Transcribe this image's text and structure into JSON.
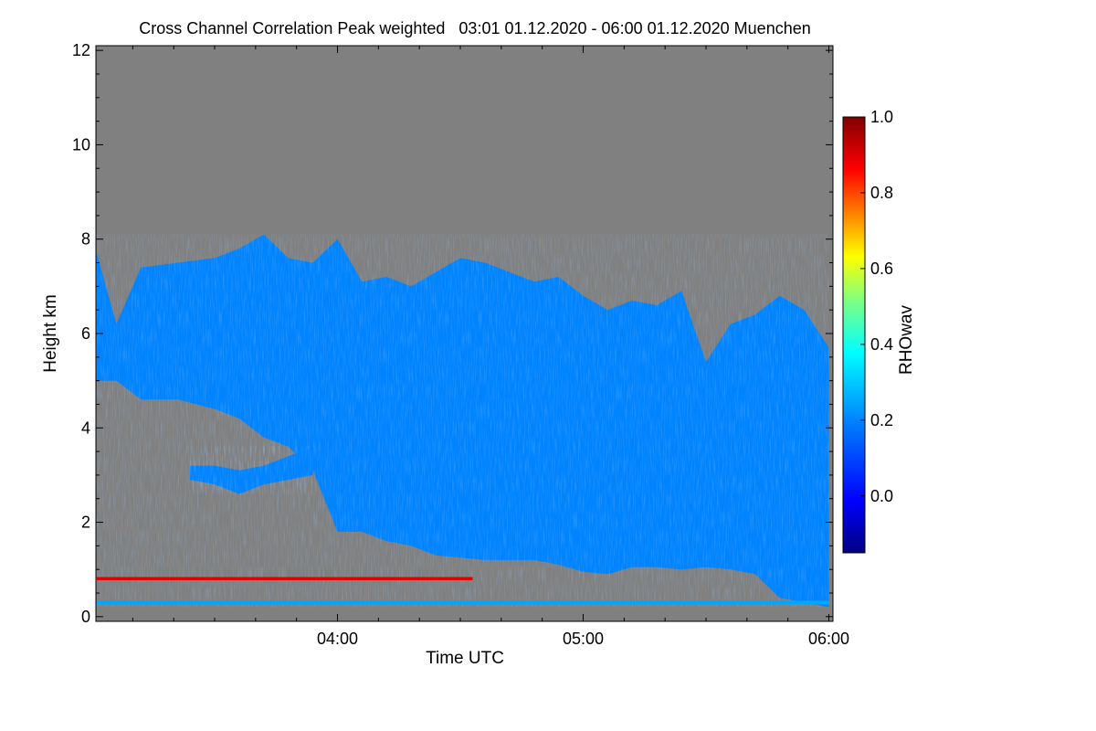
{
  "chart_data": {
    "type": "heatmap",
    "title": "Cross Channel Correlation Peak weighted   03:01 01.12.2020 - 06:00 01.12.2020 Muenchen",
    "xlabel": "Time UTC",
    "ylabel": "Height km",
    "x_ticks": [
      "04:00",
      "05:00",
      "06:00"
    ],
    "x_range": [
      "03:01",
      "06:01"
    ],
    "y_ticks": [
      0,
      2,
      4,
      6,
      8,
      10,
      12
    ],
    "ylim": [
      -0.1,
      12.1
    ],
    "colorbar": {
      "label": "RHOwav",
      "ticks": [
        0.0,
        0.2,
        0.4,
        0.6,
        0.8,
        1.0
      ],
      "range": [
        -0.15,
        1.0
      ],
      "colormap": [
        "#000080",
        "#0000ff",
        "#0080ff",
        "#00ffff",
        "#80ff80",
        "#ffff00",
        "#ff8000",
        "#ff0000",
        "#800000"
      ]
    },
    "background_color": "#808080",
    "cloud_layer": {
      "typical_value": 0.2,
      "time_hours": [
        3.02,
        3.1,
        3.2,
        3.35,
        3.5,
        3.6,
        3.7,
        3.8,
        3.9,
        4.0,
        4.1,
        4.2,
        4.3,
        4.4,
        4.5,
        4.6,
        4.7,
        4.8,
        4.9,
        5.0,
        5.1,
        5.2,
        5.3,
        5.4,
        5.5,
        5.6,
        5.7,
        5.8,
        5.9,
        6.0
      ],
      "top_km": [
        7.7,
        6.2,
        7.4,
        7.5,
        7.6,
        7.8,
        8.1,
        7.6,
        7.5,
        8.0,
        7.1,
        7.2,
        7.0,
        7.3,
        7.6,
        7.5,
        7.3,
        7.1,
        7.2,
        6.8,
        6.5,
        6.7,
        6.6,
        6.9,
        5.4,
        6.2,
        6.4,
        6.8,
        6.5,
        5.7
      ],
      "base_km": [
        5.0,
        5.0,
        4.6,
        4.6,
        4.4,
        4.2,
        3.8,
        3.6,
        3.1,
        1.8,
        1.8,
        1.6,
        1.5,
        1.3,
        1.25,
        1.2,
        1.2,
        1.2,
        1.1,
        0.95,
        0.9,
        1.05,
        1.05,
        1.0,
        1.05,
        1.0,
        0.9,
        0.4,
        0.3,
        0.2
      ]
    },
    "lower_band": {
      "time_hours": [
        3.4,
        3.5,
        3.6,
        3.7,
        3.8,
        3.9
      ],
      "top_km": [
        3.2,
        3.2,
        3.1,
        3.2,
        3.4,
        3.6
      ],
      "base_km": [
        2.9,
        2.8,
        2.6,
        2.8,
        2.9,
        3.0
      ],
      "typical_value": 0.2
    },
    "near_surface_layer": {
      "height_km": 0.3,
      "time_hours": [
        3.02,
        6.0
      ],
      "typical_value": 0.25
    },
    "high_correlation_layer": {
      "height_km": 0.8,
      "time_hours": [
        3.02,
        4.55
      ],
      "typical_value": 0.9
    }
  }
}
